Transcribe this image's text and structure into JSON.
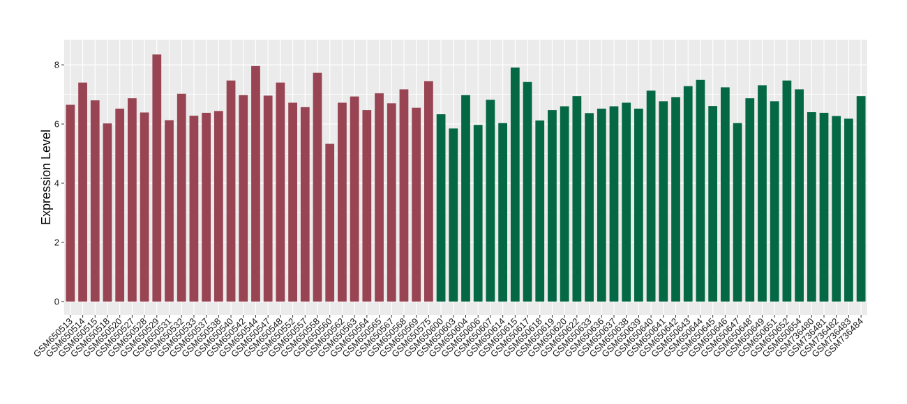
{
  "chart_data": {
    "type": "bar",
    "ylabel": "Expression Level",
    "xlabel": "",
    "ylim": [
      -0.45,
      8.85
    ],
    "yticks": [
      0,
      2,
      4,
      6,
      8
    ],
    "grid": true,
    "background": "#EBEBEB",
    "colors": {
      "group1": "#984452",
      "group2": "#046845"
    },
    "categories": [
      "GSM650513",
      "GSM650514",
      "GSM650515",
      "GSM650518",
      "GSM650520",
      "GSM650527",
      "GSM650528",
      "GSM650529",
      "GSM650531",
      "GSM650532",
      "GSM650533",
      "GSM650537",
      "GSM650538",
      "GSM650540",
      "GSM650542",
      "GSM650544",
      "GSM650547",
      "GSM650548",
      "GSM650552",
      "GSM650557",
      "GSM650558",
      "GSM650560",
      "GSM650562",
      "GSM650563",
      "GSM650564",
      "GSM650565",
      "GSM650567",
      "GSM650568",
      "GSM650569",
      "GSM650575",
      "GSM650600",
      "GSM650603",
      "GSM650604",
      "GSM650606",
      "GSM650607",
      "GSM650614",
      "GSM650615",
      "GSM650617",
      "GSM650618",
      "GSM650619",
      "GSM650620",
      "GSM650622",
      "GSM650633",
      "GSM650636",
      "GSM650637",
      "GSM650638",
      "GSM650639",
      "GSM650640",
      "GSM650641",
      "GSM650642",
      "GSM650643",
      "GSM650644",
      "GSM650645",
      "GSM650646",
      "GSM650647",
      "GSM650648",
      "GSM650649",
      "GSM650651",
      "GSM650652",
      "GSM650654",
      "GSM736480",
      "GSM736481",
      "GSM736482",
      "GSM736483",
      "GSM736484"
    ],
    "values": [
      6.65,
      7.4,
      6.8,
      6.02,
      6.52,
      6.87,
      6.39,
      8.35,
      6.13,
      7.02,
      6.28,
      6.38,
      6.44,
      7.47,
      6.98,
      7.96,
      6.96,
      7.4,
      6.72,
      6.57,
      7.73,
      5.33,
      6.72,
      6.93,
      6.47,
      7.04,
      6.7,
      7.17,
      6.55,
      7.45,
      6.33,
      5.85,
      6.98,
      5.97,
      6.82,
      6.03,
      7.91,
      7.42,
      6.12,
      6.47,
      6.6,
      6.94,
      6.37,
      6.52,
      6.6,
      6.72,
      6.52,
      7.13,
      6.77,
      6.91,
      7.28,
      7.49,
      6.61,
      7.24,
      6.03,
      6.87,
      7.31,
      6.77,
      7.47,
      7.17,
      6.4,
      6.38,
      6.27,
      6.18,
      6.94
    ],
    "group_split": 30
  }
}
